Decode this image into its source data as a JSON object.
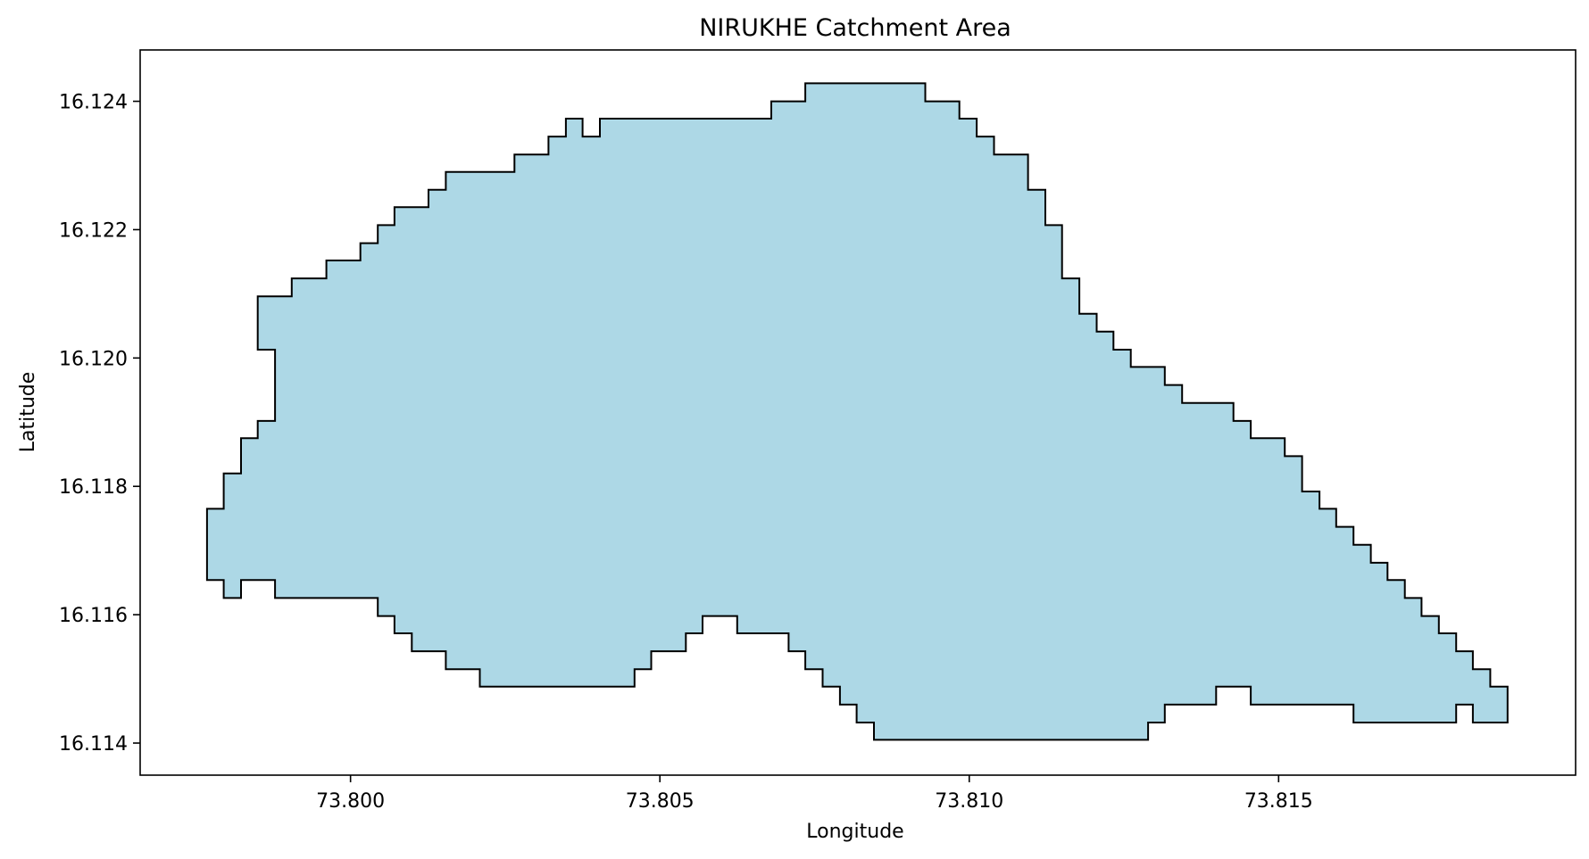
{
  "chart_data": {
    "type": "area",
    "title": "NIRUKHE Catchment Area",
    "xlabel": "Longitude",
    "ylabel": "Latitude",
    "xlim": [
      73.7966,
      73.8198
    ],
    "ylim": [
      16.1135,
      16.1248
    ],
    "x_ticks": [
      {
        "value": 73.8,
        "label": "73.800"
      },
      {
        "value": 73.805,
        "label": "73.805"
      },
      {
        "value": 73.81,
        "label": "73.810"
      },
      {
        "value": 73.815,
        "label": "73.815"
      }
    ],
    "y_ticks": [
      {
        "value": 16.114,
        "label": "16.114"
      },
      {
        "value": 16.116,
        "label": "16.116"
      },
      {
        "value": 16.118,
        "label": "16.118"
      },
      {
        "value": 16.12,
        "label": "16.120"
      },
      {
        "value": 16.122,
        "label": "16.122"
      },
      {
        "value": 16.124,
        "label": "16.124"
      }
    ],
    "grid": false,
    "legend": "none",
    "fill_color": "#add8e6",
    "edge_color": "#000000",
    "boundary": [
      [
        73.79768,
        16.11765
      ],
      [
        73.79795,
        16.11765
      ],
      [
        73.79795,
        16.1182
      ],
      [
        73.79823,
        16.1182
      ],
      [
        73.79823,
        16.11875
      ],
      [
        73.7985,
        16.11875
      ],
      [
        73.7985,
        16.11902
      ],
      [
        73.79878,
        16.11902
      ],
      [
        73.79878,
        16.12013
      ],
      [
        73.7985,
        16.12013
      ],
      [
        73.7985,
        16.12096
      ],
      [
        73.79905,
        16.12096
      ],
      [
        73.79905,
        16.12124
      ],
      [
        73.79961,
        16.12124
      ],
      [
        73.79961,
        16.12152
      ],
      [
        73.80016,
        16.12152
      ],
      [
        73.80016,
        16.12179
      ],
      [
        73.80044,
        16.12179
      ],
      [
        73.80044,
        16.12207
      ],
      [
        73.80071,
        16.12207
      ],
      [
        73.80071,
        16.12235
      ],
      [
        73.80126,
        16.12235
      ],
      [
        73.80126,
        16.12262
      ],
      [
        73.80154,
        16.12262
      ],
      [
        73.80154,
        16.1229
      ],
      [
        73.80265,
        16.1229
      ],
      [
        73.80265,
        16.12317
      ],
      [
        73.8032,
        16.12317
      ],
      [
        73.8032,
        16.12345
      ],
      [
        73.80348,
        16.12345
      ],
      [
        73.80348,
        16.12373
      ],
      [
        73.80375,
        16.12373
      ],
      [
        73.80375,
        16.12345
      ],
      [
        73.80403,
        16.12345
      ],
      [
        73.80403,
        16.12373
      ],
      [
        73.8068,
        16.12373
      ],
      [
        73.8068,
        16.124
      ],
      [
        73.80735,
        16.124
      ],
      [
        73.80735,
        16.12428
      ],
      [
        73.80929,
        16.12428
      ],
      [
        73.80929,
        16.124
      ],
      [
        73.80984,
        16.124
      ],
      [
        73.80984,
        16.12373
      ],
      [
        73.81012,
        16.12373
      ],
      [
        73.81012,
        16.12345
      ],
      [
        73.8104,
        16.12345
      ],
      [
        73.8104,
        16.12317
      ],
      [
        73.81095,
        16.12317
      ],
      [
        73.81095,
        16.12262
      ],
      [
        73.81123,
        16.12262
      ],
      [
        73.81123,
        16.12207
      ],
      [
        73.8115,
        16.12207
      ],
      [
        73.8115,
        16.12124
      ],
      [
        73.81178,
        16.12124
      ],
      [
        73.81178,
        16.12069
      ],
      [
        73.81206,
        16.12069
      ],
      [
        73.81206,
        16.12041
      ],
      [
        73.81233,
        16.12041
      ],
      [
        73.81233,
        16.12013
      ],
      [
        73.81261,
        16.12013
      ],
      [
        73.81261,
        16.11986
      ],
      [
        73.81316,
        16.11986
      ],
      [
        73.81316,
        16.11958
      ],
      [
        73.81344,
        16.11958
      ],
      [
        73.81344,
        16.1193
      ],
      [
        73.81427,
        16.1193
      ],
      [
        73.81427,
        16.11902
      ],
      [
        73.81455,
        16.11902
      ],
      [
        73.81455,
        16.11875
      ],
      [
        73.8151,
        16.11875
      ],
      [
        73.8151,
        16.11847
      ],
      [
        73.81538,
        16.11847
      ],
      [
        73.81538,
        16.11792
      ],
      [
        73.81566,
        16.11792
      ],
      [
        73.81566,
        16.11765
      ],
      [
        73.81593,
        16.11765
      ],
      [
        73.81593,
        16.11737
      ],
      [
        73.81621,
        16.11737
      ],
      [
        73.81621,
        16.11709
      ],
      [
        73.81649,
        16.11709
      ],
      [
        73.81649,
        16.11681
      ],
      [
        73.81676,
        16.11681
      ],
      [
        73.81676,
        16.11654
      ],
      [
        73.81704,
        16.11654
      ],
      [
        73.81704,
        16.11626
      ],
      [
        73.81731,
        16.11626
      ],
      [
        73.81731,
        16.11598
      ],
      [
        73.81759,
        16.11598
      ],
      [
        73.81759,
        16.11571
      ],
      [
        73.81787,
        16.11571
      ],
      [
        73.81787,
        16.11543
      ],
      [
        73.81814,
        16.11543
      ],
      [
        73.81814,
        16.11515
      ],
      [
        73.81842,
        16.11515
      ],
      [
        73.81842,
        16.11488
      ],
      [
        73.8187,
        16.11488
      ],
      [
        73.8187,
        16.11432
      ],
      [
        73.81814,
        16.11432
      ],
      [
        73.81814,
        16.1146
      ],
      [
        73.81787,
        16.1146
      ],
      [
        73.81787,
        16.11432
      ],
      [
        73.81621,
        16.11432
      ],
      [
        73.81621,
        16.1146
      ],
      [
        73.81455,
        16.1146
      ],
      [
        73.81455,
        16.11488
      ],
      [
        73.81399,
        16.11488
      ],
      [
        73.81399,
        16.1146
      ],
      [
        73.81316,
        16.1146
      ],
      [
        73.81316,
        16.11432
      ],
      [
        73.81289,
        16.11432
      ],
      [
        73.81289,
        16.11405
      ],
      [
        73.80846,
        16.11405
      ],
      [
        73.80846,
        16.11432
      ],
      [
        73.80818,
        16.11432
      ],
      [
        73.80818,
        16.1146
      ],
      [
        73.80791,
        16.1146
      ],
      [
        73.80791,
        16.11488
      ],
      [
        73.80763,
        16.11488
      ],
      [
        73.80763,
        16.11515
      ],
      [
        73.80735,
        16.11515
      ],
      [
        73.80735,
        16.11543
      ],
      [
        73.80708,
        16.11543
      ],
      [
        73.80708,
        16.11571
      ],
      [
        73.80625,
        16.11571
      ],
      [
        73.80625,
        16.11598
      ],
      [
        73.80569,
        16.11598
      ],
      [
        73.80569,
        16.11571
      ],
      [
        73.80542,
        16.11571
      ],
      [
        73.80542,
        16.11543
      ],
      [
        73.80486,
        16.11543
      ],
      [
        73.80486,
        16.11515
      ],
      [
        73.80459,
        16.11515
      ],
      [
        73.80459,
        16.11488
      ],
      [
        73.80209,
        16.11488
      ],
      [
        73.80209,
        16.11515
      ],
      [
        73.80154,
        16.11515
      ],
      [
        73.80154,
        16.11543
      ],
      [
        73.80099,
        16.11543
      ],
      [
        73.80099,
        16.11571
      ],
      [
        73.80071,
        16.11571
      ],
      [
        73.80071,
        16.11598
      ],
      [
        73.80044,
        16.11598
      ],
      [
        73.80044,
        16.11626
      ],
      [
        73.79878,
        16.11626
      ],
      [
        73.79878,
        16.11654
      ],
      [
        73.79823,
        16.11654
      ],
      [
        73.79823,
        16.11626
      ],
      [
        73.79795,
        16.11626
      ],
      [
        73.79795,
        16.11654
      ],
      [
        73.79768,
        16.11654
      ]
    ]
  }
}
